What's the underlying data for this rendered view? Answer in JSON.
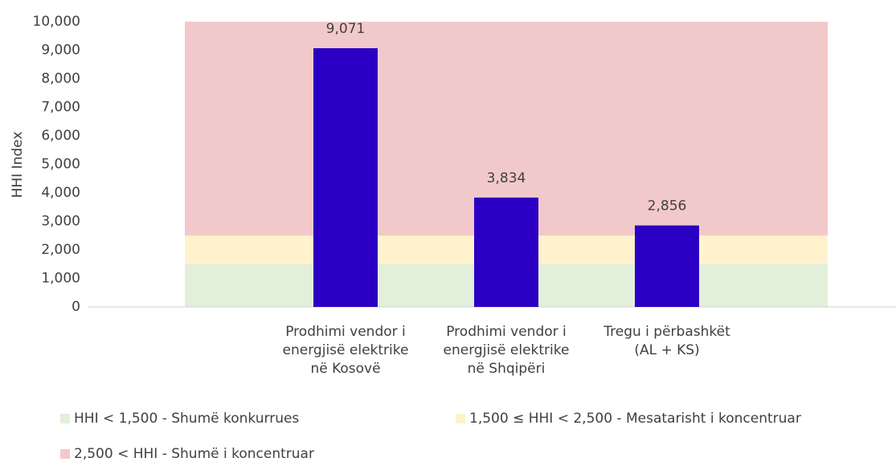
{
  "chart_data": {
    "type": "bar",
    "y_label": "HHI Index",
    "categories": [
      [
        "Prodhimi vendor i",
        "energjisë elektrike",
        "në Kosovë"
      ],
      [
        "Prodhimi vendor i",
        "energjisë elektrike",
        "në Shqipëri"
      ],
      [
        "Tregu i përbashkët",
        "(AL + KS)"
      ]
    ],
    "values": [
      9071,
      3834,
      2856
    ],
    "value_labels": [
      "9,071",
      "3,834",
      "2,856"
    ],
    "color": "#2b00c4",
    "ylim": [
      0,
      10000
    ],
    "yticks": [
      0,
      {
        "value": 1000,
        "label": "1,000"
      },
      {
        "value": 2000,
        "label": "2,000"
      },
      {
        "value": 3000,
        "label": "3,000"
      },
      {
        "value": 4000,
        "label": "4,000"
      },
      {
        "value": 5000,
        "label": "5,000"
      },
      {
        "value": 6000,
        "label": "6,000"
      },
      {
        "value": 7000,
        "label": "7,000"
      },
      {
        "value": 8000,
        "label": "8,000"
      },
      {
        "value": 9000,
        "label": "9,000"
      },
      {
        "value": 10000,
        "label": "10,000"
      }
    ],
    "bands": [
      {
        "name": "HHI < 1,500 - Shumë konkurrues",
        "color": "#e2efda",
        "from": 0,
        "to": 1500
      },
      {
        "name": "1,500 ≤ HHI < 2,500 - Mesatarisht i koncentruar",
        "color": "#fff2cc",
        "from": 1500,
        "to": 2500
      },
      {
        "name": "2,500 < HHI - Shumë i koncentruar",
        "color": "#f2c9ca",
        "from": 2500,
        "to": 10000
      }
    ]
  }
}
